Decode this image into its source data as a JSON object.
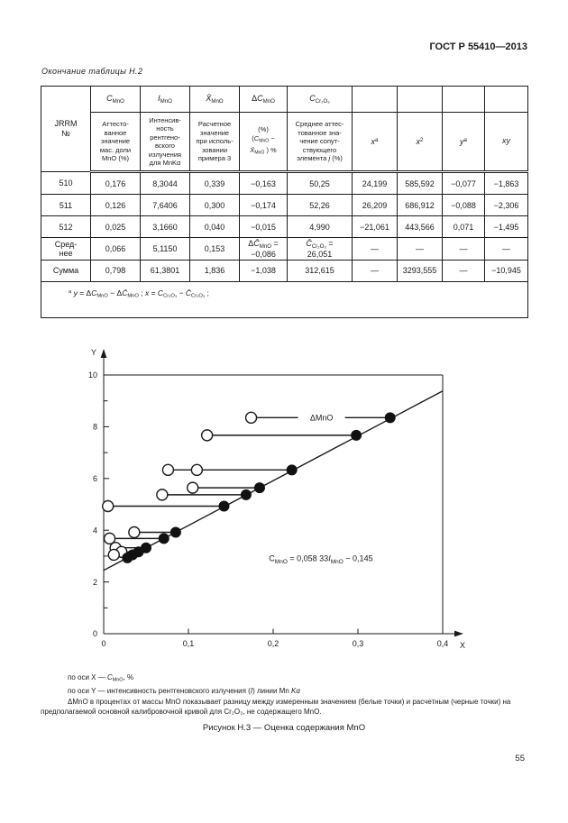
{
  "page": {
    "header_title": "ГОСТ Р 55410—2013",
    "table_caption": "Окончание таблицы Н.2",
    "figure_caption": "Рисунок Н.3 — Оценка содержания MnO",
    "page_number": "55"
  },
  "table": {
    "header": {
      "corner_html": "JRRM<br>№",
      "top_cells_html": [
        "<i>C</i><sub>MnO</sub>",
        "<i>I</i><sub>MnO</sub>",
        "<i>X̄</i><sub>MnO</sub>",
        "Δ<i>C</i><sub>MnO</sub>",
        "<i>C</i><sub>Cr₂O₃</sub>",
        "",
        "",
        "",
        ""
      ],
      "bottom_cells_html": [
        "Аттесто-<br>ванное<br>значение<br>мас. доли<br>MnO (%)",
        "Интенсив-<br>ность<br>рентгено-<br>вского<br>излучения<br>для MnKα",
        "Расчетное<br>значение<br>при исполь-<br>зовании<br>примера 3",
        "(%)<br>(<i>C</i><sub>MnO</sub> −<br><i>X̄</i><sub>MnO</sub> ) %",
        "Среднее аттес-<br>тованное зна-<br>чение сопут-<br>ствующего<br>элемента <i>j</i> (%)",
        "<i>x</i><sup>а</sup>",
        "<i>x</i><sup>2</sup>",
        "<i>y</i><sup>а</sup>",
        "<i>xy</i>"
      ]
    },
    "rows": [
      {
        "label": "510",
        "cells": [
          "0,176",
          "8,3044",
          "0,339",
          "−0,163",
          "50,25",
          "24,199",
          "585,592",
          "−0,077",
          "−1,863"
        ]
      },
      {
        "label": "511",
        "cells": [
          "0,126",
          "7,6406",
          "0,300",
          "−0,174",
          "52,26",
          "26,209",
          "686,912",
          "−0,088",
          "−2,306"
        ]
      },
      {
        "label": "512",
        "cells": [
          "0,025",
          "3,1660",
          "0,040",
          "−0,015",
          "4,990",
          "−21,061",
          "443,566",
          "0,071",
          "−1,495"
        ]
      },
      {
        "label": "Сред-<br>нее",
        "cells": [
          "0,066",
          "5,1150",
          "0,153",
          "Δ<i>C̄</i><sub>MnO</sub> =<br>−0,086",
          "<i>C̄</i><sub>Cr₂O₃</sub> =<br>26,051",
          "—",
          "—",
          "—",
          "—"
        ]
      },
      {
        "label": "Сумма",
        "cells": [
          "0,798",
          "61,3801",
          "1,836",
          "−1,038",
          "312,615",
          "—",
          "3293,555",
          "—",
          "−10,945"
        ]
      }
    ],
    "footnote_html": "<sup>а</sup> <i>y</i> = Δ<i>C</i><sub>MnO</sub> − Δ<i>C̄</i><sub>MnO</sub> ; <i>x</i> = <i>C</i><sub>Cr₂O₃</sub> − <i>C̄</i><sub>Cr₂O₃</sub> ;"
  },
  "figure": {
    "notes": [
      "по оси X — <i>C</i><sub>MnO</sub>, %",
      "по оси Y — интенсивность рентгеновского излучения (<i>I</i>) линии Mn <i>Kα</i>",
      "ΔMnO в процентах от массы MnO показывает разницу между измеренным значением (белые точки) и расчетным (черные точки) на предполагаемой основной калибровочной кривой для Cr₂O₃, не содержащего MnO."
    ]
  },
  "chart_data": {
    "type": "scatter",
    "title": "Рисунок Н.3 — Оценка содержания MnO",
    "xlabel": "X",
    "ylabel": "Y",
    "xlim": [
      0,
      0.4
    ],
    "ylim": [
      0,
      10
    ],
    "grid": false,
    "x_ticks": [
      0,
      0.1,
      0.2,
      0.3,
      0.4
    ],
    "x_tick_labels": [
      "0",
      "0,1",
      "0,2",
      "0,3",
      "0,4"
    ],
    "y_ticks": [
      0,
      2,
      4,
      6,
      8,
      10
    ],
    "y_tick_labels": [
      "0",
      "2",
      "4",
      "6",
      "8",
      "10"
    ],
    "y_minor_ticks": [
      1,
      3,
      5,
      7,
      9
    ],
    "calibration_line": {
      "x": [
        0,
        0.4
      ],
      "y": [
        2.45,
        9.38
      ]
    },
    "equation": "C_MnO = 0,058 33 I_MnO − 0,145",
    "equation_segments": [
      {
        "t": "C"
      },
      {
        "t": "MnO",
        "sub": true
      },
      {
        "t": " = 0,058 33"
      },
      {
        "t": "I",
        "i": true
      },
      {
        "t": "MnO",
        "sub": true
      },
      {
        "t": " − 0,145"
      }
    ],
    "equation_pos": {
      "x": 0.195,
      "y": 2.8
    },
    "delta_label": "ΔMnO",
    "delta_label_pos": {
      "x": 0.257,
      "y": 8.35
    },
    "pairs": [
      {
        "y": 8.35,
        "open_x": [
          0.174
        ],
        "filled_x": 0.338
      },
      {
        "y": 7.67,
        "open_x": [
          0.122
        ],
        "filled_x": 0.298
      },
      {
        "y": 6.33,
        "open_x": [
          0.076,
          0.11
        ],
        "filled_x": 0.222
      },
      {
        "y": 5.64,
        "open_x": [
          0.105
        ],
        "filled_x": 0.184
      },
      {
        "y": 5.37,
        "open_x": [
          0.069
        ],
        "filled_x": 0.168
      },
      {
        "y": 4.93,
        "open_x": [
          0.005
        ],
        "filled_x": 0.142
      },
      {
        "y": 3.92,
        "open_x": [
          0.036
        ],
        "filled_x": 0.085
      },
      {
        "y": 3.68,
        "open_x": [
          0.007
        ],
        "filled_x": 0.071
      },
      {
        "y": 3.32,
        "open_x": [
          0.014
        ],
        "filled_x": 0.05
      },
      {
        "y": 3.16,
        "open_x": [
          0.021
        ],
        "filled_x": 0.041
      },
      {
        "y": 3.05,
        "open_x": [
          0.012
        ],
        "filled_x": 0.034
      },
      {
        "y": 2.93,
        "open_x": [],
        "filled_x": 0.028
      }
    ]
  }
}
